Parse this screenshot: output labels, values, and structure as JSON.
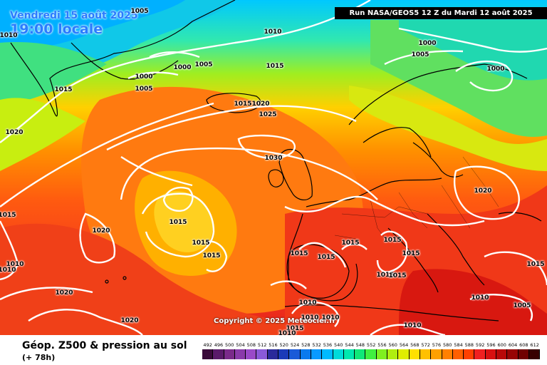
{
  "header": {
    "date_text": "Vendredi 15 août 2025",
    "time_text": "19:00 locale",
    "run_text": "Run NASA/GEOS5 12 Z du Mardi 12 août 2025",
    "copyright": "Copyright © 2025 Meteociel.fr"
  },
  "footer": {
    "title": "Géop. Z500 & pression au sol",
    "subtitle": "(+ 78h)"
  },
  "legend": {
    "values": [
      "492",
      "496",
      "500",
      "504",
      "508",
      "512",
      "516",
      "520",
      "524",
      "528",
      "532",
      "536",
      "540",
      "544",
      "548",
      "552",
      "556",
      "560",
      "564",
      "568",
      "572",
      "576",
      "580",
      "584",
      "588",
      "592",
      "596",
      "600",
      "604",
      "608",
      "612"
    ],
    "colors": [
      "#3a0a3a",
      "#5a1a6a",
      "#7a2a8a",
      "#8a3aaa",
      "#9a4ac8",
      "#8a5ad8",
      "#2a2a9a",
      "#1a3ab8",
      "#1a5ad8",
      "#0a7aee",
      "#0a9aff",
      "#00baff",
      "#00dada",
      "#00e8b0",
      "#10e878",
      "#40f040",
      "#80f020",
      "#b0ee10",
      "#e0ee00",
      "#ffe000",
      "#ffc000",
      "#ffa000",
      "#ff8000",
      "#ff6000",
      "#ff4000",
      "#f02020",
      "#d81010",
      "#b80808",
      "#980404",
      "#700000",
      "#380000"
    ]
  },
  "isobars": [
    {
      "id": "l1",
      "text": "1005"
    },
    {
      "id": "l2",
      "text": "1010"
    },
    {
      "id": "l3",
      "text": "1010"
    },
    {
      "id": "l4",
      "text": "1000"
    },
    {
      "id": "l5",
      "text": "1005"
    },
    {
      "id": "l6",
      "text": "1015"
    },
    {
      "id": "l7",
      "text": "1000"
    },
    {
      "id": "l8",
      "text": "1005"
    },
    {
      "id": "l9",
      "text": "1000"
    },
    {
      "id": "l10",
      "text": "1005"
    },
    {
      "id": "l11",
      "text": "1000"
    },
    {
      "id": "l12",
      "text": "1015"
    },
    {
      "id": "l13",
      "text": "1015"
    },
    {
      "id": "l14",
      "text": "1020"
    },
    {
      "id": "l15",
      "text": "1025"
    },
    {
      "id": "l16",
      "text": "1020"
    },
    {
      "id": "l17",
      "text": "1030"
    },
    {
      "id": "l18",
      "text": "1015"
    },
    {
      "id": "l19",
      "text": "1020"
    },
    {
      "id": "l20",
      "text": "1020"
    },
    {
      "id": "l21",
      "text": "1015"
    },
    {
      "id": "l22",
      "text": "1015"
    },
    {
      "id": "l23",
      "text": "1015"
    },
    {
      "id": "l24",
      "text": "1015"
    },
    {
      "id": "l25",
      "text": "1015"
    },
    {
      "id": "l26",
      "text": "1015"
    },
    {
      "id": "l27",
      "text": "1015"
    },
    {
      "id": "l28",
      "text": "1015"
    },
    {
      "id": "l29",
      "text": "1015"
    },
    {
      "id": "l30",
      "text": "1015"
    },
    {
      "id": "l31",
      "text": "1010"
    },
    {
      "id": "l32",
      "text": "1010"
    },
    {
      "id": "l33",
      "text": "1020"
    },
    {
      "id": "l34",
      "text": "1020"
    },
    {
      "id": "l35",
      "text": "1010"
    },
    {
      "id": "l36",
      "text": "1010"
    },
    {
      "id": "l37",
      "text": "1015"
    },
    {
      "id": "l38",
      "text": "1010"
    },
    {
      "id": "l39",
      "text": "1010"
    },
    {
      "id": "l40",
      "text": "1010"
    },
    {
      "id": "l41",
      "text": "1005"
    },
    {
      "id": "l42",
      "text": "1015"
    },
    {
      "id": "l43",
      "text": "1010"
    }
  ]
}
